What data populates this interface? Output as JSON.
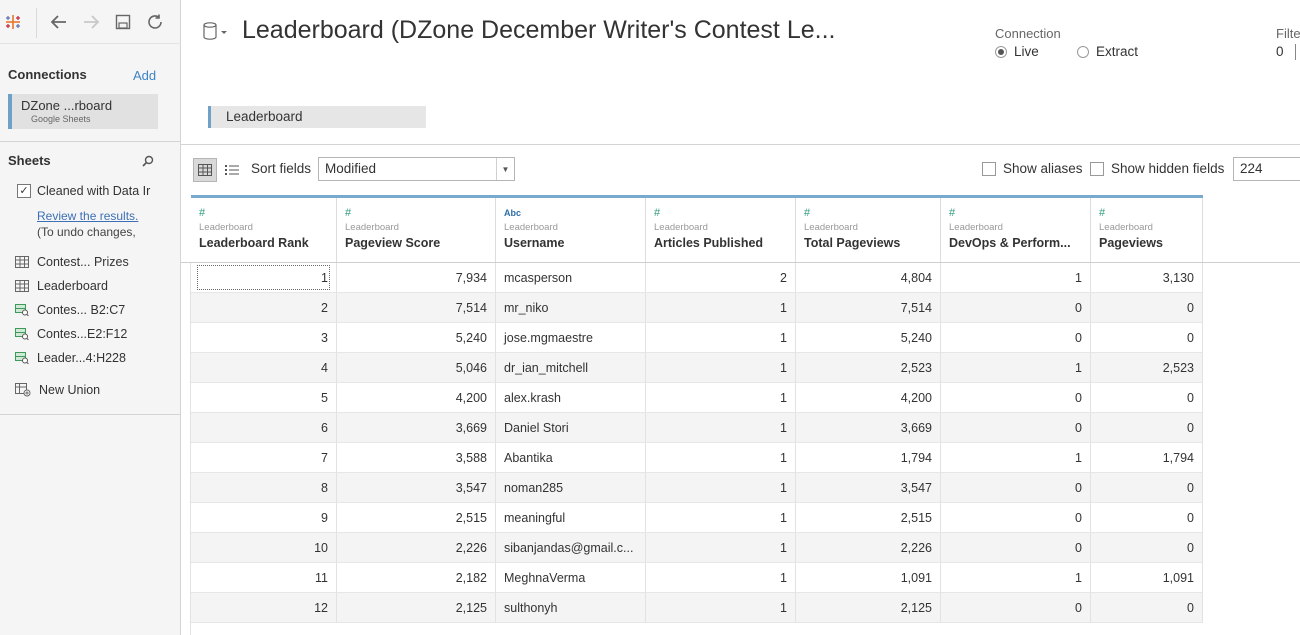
{
  "toolbar": {
    "icons": [
      "tableau-logo-icon",
      "back-arrow-icon",
      "forward-arrow-icon",
      "save-icon",
      "refresh-icon"
    ]
  },
  "connections": {
    "heading": "Connections",
    "add_label": "Add",
    "items": [
      {
        "name": "DZone ...rboard",
        "type": "Google Sheets"
      }
    ]
  },
  "sheets": {
    "heading": "Sheets",
    "cleaned_label": "Cleaned with Data Ir",
    "cleaned_checked": true,
    "review_link": "Review the results.",
    "undo_note": "(To undo changes,",
    "items": [
      {
        "label": "Contest... Prizes",
        "icon": "sheet-table-icon"
      },
      {
        "label": "Leaderboard",
        "icon": "sheet-table-icon"
      },
      {
        "label": "Contes... B2:C7",
        "icon": "named-range-icon"
      },
      {
        "label": "Contes...E2:F12",
        "icon": "named-range-icon"
      },
      {
        "label": "Leader...4:H228",
        "icon": "named-range-icon"
      },
      {
        "label": "New Union",
        "icon": "union-icon"
      }
    ]
  },
  "header": {
    "title": "Leaderboard (DZone December Writer's Contest Le...",
    "connection_label": "Connection",
    "connection_options": [
      "Live",
      "Extract"
    ],
    "connection_selected": "Live",
    "filters_label": "Filte",
    "filters_count": "0"
  },
  "canvas": {
    "table_pill": "Leaderboard"
  },
  "grid_toolbar": {
    "sort_label": "Sort fields",
    "sort_value": "Modified",
    "show_aliases": "Show aliases",
    "show_hidden": "Show hidden fields",
    "rows_value": "224"
  },
  "table": {
    "columns": [
      {
        "type": "#",
        "source": "Leaderboard",
        "name": "Leaderboard Rank",
        "align": "num"
      },
      {
        "type": "#",
        "source": "Leaderboard",
        "name": "Pageview Score",
        "align": "num"
      },
      {
        "type": "Abc",
        "source": "Leaderboard",
        "name": "Username",
        "align": "txt"
      },
      {
        "type": "#",
        "source": "Leaderboard",
        "name": "Articles Published",
        "align": "num"
      },
      {
        "type": "#",
        "source": "Leaderboard",
        "name": "Total Pageviews",
        "align": "num"
      },
      {
        "type": "#",
        "source": "Leaderboard",
        "name": "DevOps & Perform...",
        "align": "num"
      },
      {
        "type": "#",
        "source": "Leaderboard",
        "name": "Pageviews",
        "align": "num"
      }
    ],
    "rows": [
      [
        "1",
        "7,934",
        "mcasperson",
        "2",
        "4,804",
        "1",
        "3,130"
      ],
      [
        "2",
        "7,514",
        "mr_niko",
        "1",
        "7,514",
        "0",
        "0"
      ],
      [
        "3",
        "5,240",
        "jose.mgmaestre",
        "1",
        "5,240",
        "0",
        "0"
      ],
      [
        "4",
        "5,046",
        "dr_ian_mitchell",
        "1",
        "2,523",
        "1",
        "2,523"
      ],
      [
        "5",
        "4,200",
        "alex.krash",
        "1",
        "4,200",
        "0",
        "0"
      ],
      [
        "6",
        "3,669",
        "Daniel Stori",
        "1",
        "3,669",
        "0",
        "0"
      ],
      [
        "7",
        "3,588",
        "Abantika",
        "1",
        "1,794",
        "1",
        "1,794"
      ],
      [
        "8",
        "3,547",
        "noman285",
        "1",
        "3,547",
        "0",
        "0"
      ],
      [
        "9",
        "2,515",
        "meaningful",
        "1",
        "2,515",
        "0",
        "0"
      ],
      [
        "10",
        "2,226",
        "sibanjandas@gmail.c...",
        "1",
        "2,226",
        "0",
        "0"
      ],
      [
        "11",
        "2,182",
        "MeghnaVerma",
        "1",
        "1,091",
        "1",
        "1,091"
      ],
      [
        "12",
        "2,125",
        "sulthonyh",
        "1",
        "2,125",
        "0",
        "0"
      ]
    ]
  }
}
